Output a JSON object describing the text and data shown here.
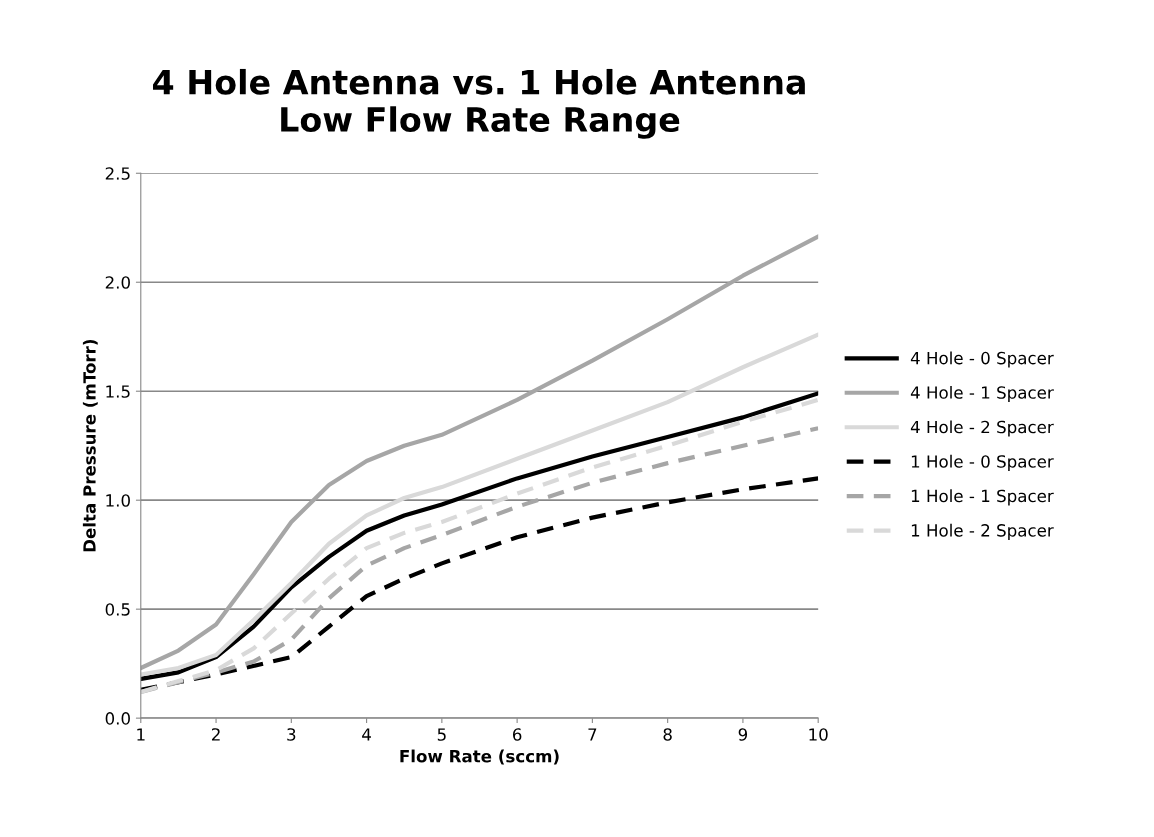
{
  "chart_data": {
    "type": "line",
    "title": "4 Hole Antenna vs. 1 Hole Antenna\nLow Flow Rate Range",
    "xlabel": "Flow Rate (sccm)",
    "ylabel": "Delta Pressure (mTorr)",
    "xlim": [
      1,
      10
    ],
    "xticks": [
      1,
      2,
      3,
      4,
      5,
      6,
      7,
      8,
      9,
      10
    ],
    "ylim": [
      0,
      2.5
    ],
    "yticks": [
      {
        "value": 0,
        "label": "0.0"
      },
      {
        "value": 0.5,
        "label": "0.5"
      },
      {
        "value": 1,
        "label": "1.0"
      },
      {
        "value": 1.5,
        "label": "1.5"
      },
      {
        "value": 2,
        "label": "2.0"
      },
      {
        "value": 2.5,
        "label": "2.5"
      }
    ],
    "grid": "y",
    "legend": "right",
    "marker": "none",
    "series": [
      {
        "name": "4 Hole - 0 Spacer",
        "color": "#000000",
        "line_style": "solid",
        "x": [
          1,
          1.5,
          2,
          2.5,
          3,
          3.5,
          4,
          4.5,
          5,
          6,
          7,
          8,
          9,
          10
        ],
        "values": [
          0.18,
          0.21,
          0.28,
          0.42,
          0.6,
          0.74,
          0.86,
          0.93,
          0.98,
          1.1,
          1.2,
          1.29,
          1.38,
          1.49
        ]
      },
      {
        "name": "4 Hole - 1 Spacer",
        "color": "#a6a6a6",
        "line_style": "solid",
        "x": [
          1,
          1.5,
          2,
          2.5,
          3,
          3.5,
          4,
          4.5,
          5,
          6,
          7,
          8,
          9,
          10
        ],
        "values": [
          0.23,
          0.31,
          0.43,
          0.66,
          0.9,
          1.07,
          1.18,
          1.25,
          1.3,
          1.46,
          1.64,
          1.83,
          2.03,
          2.21
        ]
      },
      {
        "name": "4 Hole - 2 Spacer",
        "color": "#d9d9d9",
        "line_style": "solid",
        "x": [
          1,
          1.5,
          2,
          2.5,
          3,
          3.5,
          4,
          4.5,
          5,
          6,
          7,
          8,
          9,
          10
        ],
        "values": [
          0.2,
          0.23,
          0.29,
          0.45,
          0.62,
          0.8,
          0.93,
          1.01,
          1.06,
          1.19,
          1.32,
          1.45,
          1.61,
          1.76
        ]
      },
      {
        "name": "1 Hole - 0 Spacer",
        "color": "#000000",
        "line_style": "dashed",
        "x": [
          1,
          2,
          3,
          3.5,
          4,
          4.5,
          5,
          6,
          7,
          8,
          9,
          10
        ],
        "values": [
          0.13,
          0.2,
          0.28,
          0.42,
          0.56,
          0.64,
          0.71,
          0.83,
          0.92,
          0.99,
          1.05,
          1.1
        ]
      },
      {
        "name": "1 Hole - 1 Spacer",
        "color": "#a6a6a6",
        "line_style": "dashed",
        "x": [
          1,
          2,
          2.5,
          3,
          3.5,
          4,
          4.5,
          5,
          6,
          7,
          8,
          9,
          10
        ],
        "values": [
          0.12,
          0.21,
          0.26,
          0.36,
          0.55,
          0.7,
          0.78,
          0.84,
          0.97,
          1.08,
          1.17,
          1.25,
          1.33
        ]
      },
      {
        "name": "1 Hole - 2 Spacer",
        "color": "#d9d9d9",
        "line_style": "dashed",
        "x": [
          1,
          2,
          2.5,
          3,
          3.5,
          4,
          4.5,
          5,
          6,
          7,
          8,
          9,
          10
        ],
        "values": [
          0.12,
          0.22,
          0.32,
          0.48,
          0.64,
          0.78,
          0.85,
          0.9,
          1.03,
          1.15,
          1.25,
          1.36,
          1.46
        ]
      }
    ]
  }
}
